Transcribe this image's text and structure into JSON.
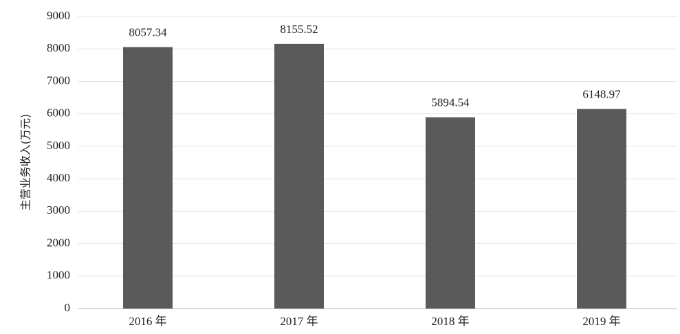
{
  "chart_data": {
    "type": "bar",
    "y_label": "主营业务收入(万元)",
    "categories": [
      "2016 年",
      "2017 年",
      "2018 年",
      "2019 年"
    ],
    "values": [
      8057.34,
      8155.52,
      5894.54,
      6148.97
    ],
    "color": "#5a5a5a",
    "ylim": [
      0,
      9000
    ],
    "yticks": [
      0,
      1000,
      2000,
      3000,
      4000,
      5000,
      6000,
      7000,
      8000,
      9000
    ],
    "grid": true,
    "show_value_labels": true
  }
}
